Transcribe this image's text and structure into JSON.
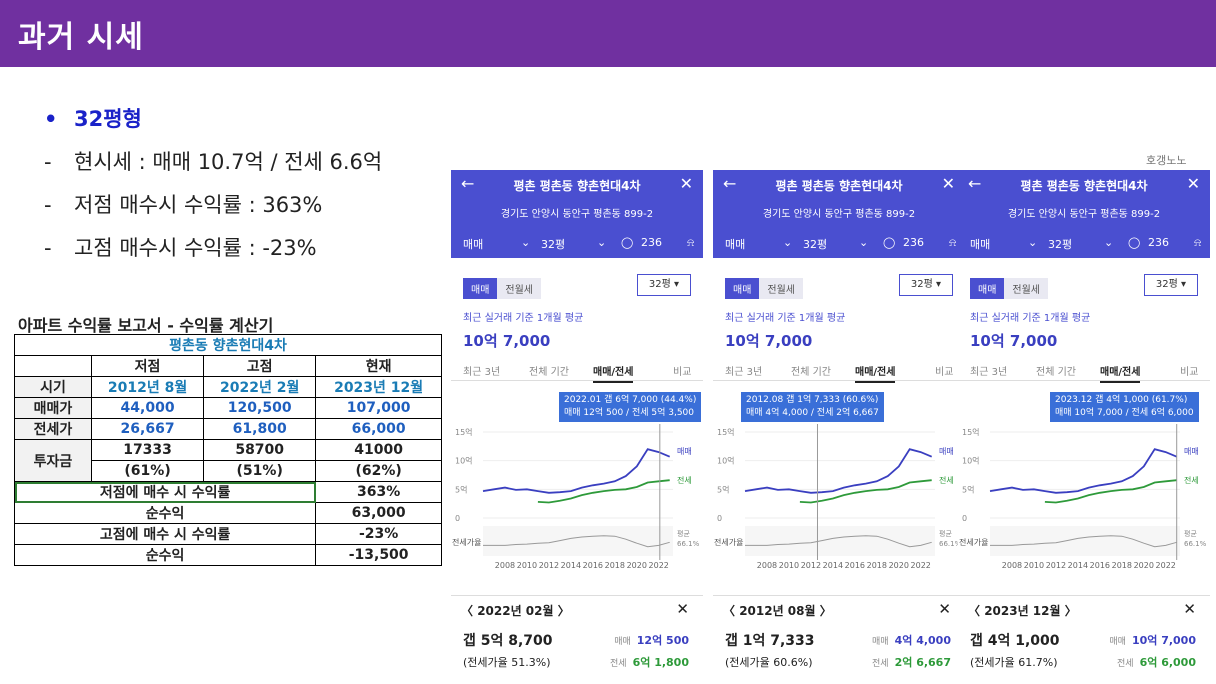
{
  "header": {
    "title": "과거 시세"
  },
  "bullets": {
    "b1": "32평형",
    "d1": "현시세 : 매매 10.7억 / 전세 6.6억",
    "d2": "저점 매수시 수익률 : 363%",
    "d3": "고점 매수시 수익률 : -23%"
  },
  "report": {
    "title": "아파트 수익률 보고서 - 수익률 계산기",
    "apt": "평촌동 향촌현대4차",
    "cols": [
      "저점",
      "고점",
      "현재"
    ],
    "rows": {
      "period": {
        "label": "시기",
        "values": [
          "2012년 8월",
          "2022년 2월",
          "2023년 12월"
        ]
      },
      "sale": {
        "label": "매매가",
        "values": [
          "44,000",
          "120,500",
          "107,000"
        ]
      },
      "jeonse": {
        "label": "전세가",
        "values": [
          "26,667",
          "61,800",
          "66,000"
        ]
      },
      "invest": {
        "label": "투자금",
        "values": [
          "17333",
          "58700",
          "41000"
        ],
        "pct": [
          "(61%)",
          "(51%)",
          "(62%)"
        ]
      }
    },
    "low_ret_label": "저점에 매수 시 수익률",
    "low_ret": "363%",
    "net1_label": "순수익",
    "net1": "63,000",
    "high_ret_label": "고점에 매수 시 수익률",
    "high_ret": "-23%",
    "net2_label": "순수익",
    "net2": "-13,500"
  },
  "watermark": "호갱노노",
  "common": {
    "name": "평촌 평촌동 향촌현대4차",
    "addr": "경기도 안양시 동안구 평촌동 899-2",
    "filter_type": "매매",
    "filter_size": "32평",
    "comments": "236",
    "tab_sale": "매매",
    "tab_rent": "전월세",
    "size_select": "32평",
    "basis": "최근 실거래 기준 1개월 평균",
    "price": "10억 7,000",
    "period_tabs": [
      "최근 3년",
      "전체 기간",
      "매매/전세",
      "비교"
    ],
    "y_ticks": [
      "15억",
      "10억",
      "5억",
      "0"
    ],
    "x_ticks": [
      "2008",
      "2010",
      "2012",
      "2014",
      "2016",
      "2018",
      "2020",
      "2022"
    ],
    "legend_sale": "매매",
    "legend_jeonse": "전세",
    "ratio_label": "전세가율",
    "avg_label": "평균",
    "avg_value": "66.1%",
    "sale_label": "매매",
    "jeonse_label": "전세"
  },
  "panels": [
    {
      "tip1": "2022.01 갭 6억 7,000 (44.4%)",
      "tip2": "매매 12억 500 / 전세 5억 3,500",
      "date": "2022년 02월",
      "gap": "갭 5억 8,700",
      "ratio": "(전세가율 51.3%)",
      "sale": "12억 500",
      "jeonse": "6억 1,800"
    },
    {
      "tip1": "2012.08 갭 1억 7,333 (60.6%)",
      "tip2": "매매 4억 4,000 / 전세 2억 6,667",
      "date": "2012년 08월",
      "gap": "갭 1억 7,333",
      "ratio": "(전세가율 60.6%)",
      "sale": "4억 4,000",
      "jeonse": "2억 6,667"
    },
    {
      "tip1": "2023.12 갭 4억 1,000 (61.7%)",
      "tip2": "매매 10억 7,000 / 전세 6억 6,000",
      "date": "2023년 12월",
      "gap": "갭 4억 1,000",
      "ratio": "(전세가율 61.7%)",
      "sale": "10억 7,000",
      "jeonse": "6억 6,000"
    }
  ],
  "chart_data": {
    "type": "line",
    "x": [
      2006,
      2007,
      2008,
      2009,
      2010,
      2011,
      2012,
      2013,
      2014,
      2015,
      2016,
      2017,
      2018,
      2019,
      2020,
      2021,
      2022,
      2023
    ],
    "series": [
      {
        "name": "매매",
        "values": [
          4.7,
          5.0,
          5.3,
          4.9,
          5.0,
          4.7,
          4.4,
          4.5,
          4.7,
          5.3,
          5.7,
          6.0,
          6.4,
          7.3,
          9.0,
          12.0,
          11.5,
          10.7
        ]
      },
      {
        "name": "전세",
        "values": [
          null,
          null,
          null,
          null,
          null,
          2.8,
          2.7,
          3.0,
          3.4,
          4.0,
          4.4,
          4.7,
          4.9,
          5.0,
          5.4,
          6.2,
          6.4,
          6.6
        ]
      }
    ],
    "ylabel": "",
    "ylim": [
      0,
      15
    ],
    "ratio_series": [
      55,
      55,
      55,
      57,
      58,
      60,
      61,
      66,
      71,
      74,
      76,
      77,
      76,
      69,
      60,
      52,
      55,
      62
    ]
  }
}
